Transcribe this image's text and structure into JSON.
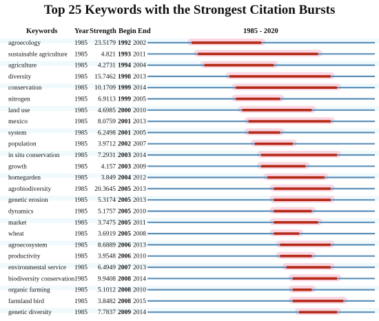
{
  "title": "Top 25 Keywords with the Strongest Citation Bursts",
  "headers": {
    "keywords": "Keywords",
    "year": "Year",
    "strength": "Strength",
    "begin": "Begin",
    "end": "End",
    "range": "1985 - 2020"
  },
  "colors": {
    "timeline": "#5b8fb8",
    "burst": "#b52a16",
    "highlight": "#f9c9d9",
    "row_tint": "#d4eef6"
  },
  "chart_data": {
    "type": "table",
    "timeline_range": [
      1985,
      2020
    ],
    "columns": [
      "Keywords",
      "Year",
      "Strength",
      "Begin",
      "End"
    ],
    "rows": [
      {
        "keyword": "agroecology",
        "year": "1985",
        "strength": "23.5179",
        "begin": 1992,
        "end": 2002
      },
      {
        "keyword": "sustainable agriculture",
        "year": "1985",
        "strength": "4.821",
        "begin": 1993,
        "end": 2011
      },
      {
        "keyword": "agriculture",
        "year": "1985",
        "strength": "4.2731",
        "begin": 1994,
        "end": 2004
      },
      {
        "keyword": "diversity",
        "year": "1985",
        "strength": "15.7462",
        "begin": 1998,
        "end": 2013
      },
      {
        "keyword": "conservation",
        "year": "1985",
        "strength": "10.1709",
        "begin": 1999,
        "end": 2014
      },
      {
        "keyword": "nitrogen",
        "year": "1985",
        "strength": "6.9113",
        "begin": 1999,
        "end": 2005
      },
      {
        "keyword": "land use",
        "year": "1985",
        "strength": "4.6985",
        "begin": 2000,
        "end": 2010
      },
      {
        "keyword": "mexico",
        "year": "1985",
        "strength": "8.0759",
        "begin": 2001,
        "end": 2013
      },
      {
        "keyword": "system",
        "year": "1985",
        "strength": "6.2498",
        "begin": 2001,
        "end": 2005
      },
      {
        "keyword": "population",
        "year": "1985",
        "strength": "3.9712",
        "begin": 2002,
        "end": 2007
      },
      {
        "keyword": "in situ conservation",
        "year": "1985",
        "strength": "7.2931",
        "begin": 2003,
        "end": 2014
      },
      {
        "keyword": "growth",
        "year": "1985",
        "strength": "4.157",
        "begin": 2003,
        "end": 2009
      },
      {
        "keyword": "homegarden",
        "year": "1985",
        "strength": "3.849",
        "begin": 2004,
        "end": 2012
      },
      {
        "keyword": "agrobiodiversity",
        "year": "1985",
        "strength": "20.3645",
        "begin": 2005,
        "end": 2013
      },
      {
        "keyword": "genetic erosion",
        "year": "1985",
        "strength": "5.3174",
        "begin": 2005,
        "end": 2013
      },
      {
        "keyword": "dynamics",
        "year": "1985",
        "strength": "5.1757",
        "begin": 2005,
        "end": 2010
      },
      {
        "keyword": "market",
        "year": "1985",
        "strength": "3.7475",
        "begin": 2005,
        "end": 2011
      },
      {
        "keyword": "wheat",
        "year": "1985",
        "strength": "3.6919",
        "begin": 2005,
        "end": 2008
      },
      {
        "keyword": "agroecosystem",
        "year": "1985",
        "strength": "8.6889",
        "begin": 2006,
        "end": 2013
      },
      {
        "keyword": "productivity",
        "year": "1985",
        "strength": "3.9548",
        "begin": 2006,
        "end": 2010
      },
      {
        "keyword": "environmental service",
        "year": "1985",
        "strength": "6.4949",
        "begin": 2007,
        "end": 2013
      },
      {
        "keyword": "biodiversity conservation",
        "year": "1985",
        "strength": "9.9408",
        "begin": 2008,
        "end": 2014
      },
      {
        "keyword": "organic farming",
        "year": "1985",
        "strength": "5.1012",
        "begin": 2008,
        "end": 2010
      },
      {
        "keyword": "farmland bird",
        "year": "1985",
        "strength": "3.8482",
        "begin": 2008,
        "end": 2015
      },
      {
        "keyword": "genetic diversity",
        "year": "1985",
        "strength": "7.7837",
        "begin": 2009,
        "end": 2014
      }
    ]
  }
}
